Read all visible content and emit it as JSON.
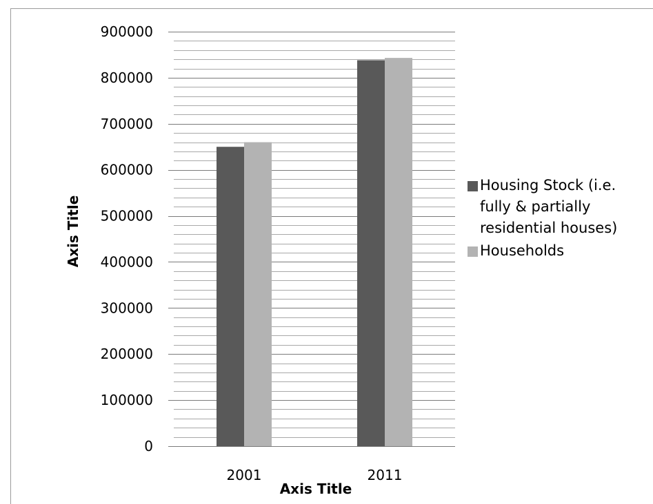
{
  "chart_data": {
    "type": "bar",
    "categories": [
      "2001",
      "2011"
    ],
    "series": [
      {
        "name": "Housing Stock (i.e.\nfully & partially\nresidential houses)",
        "values": [
          650000,
          838000
        ],
        "color": "#595959"
      },
      {
        "name": "Households",
        "values": [
          660000,
          843000
        ],
        "color": "#b3b3b3"
      }
    ],
    "title": "",
    "xlabel": "Axis Title",
    "ylabel": "Axis Title",
    "ylim": [
      0,
      900000
    ],
    "ytick_step": 100000,
    "yticks": [
      "0",
      "100000",
      "200000",
      "300000",
      "400000",
      "500000",
      "600000",
      "700000",
      "800000",
      "900000"
    ],
    "minor_gridlines": true,
    "legend_position": "right"
  }
}
